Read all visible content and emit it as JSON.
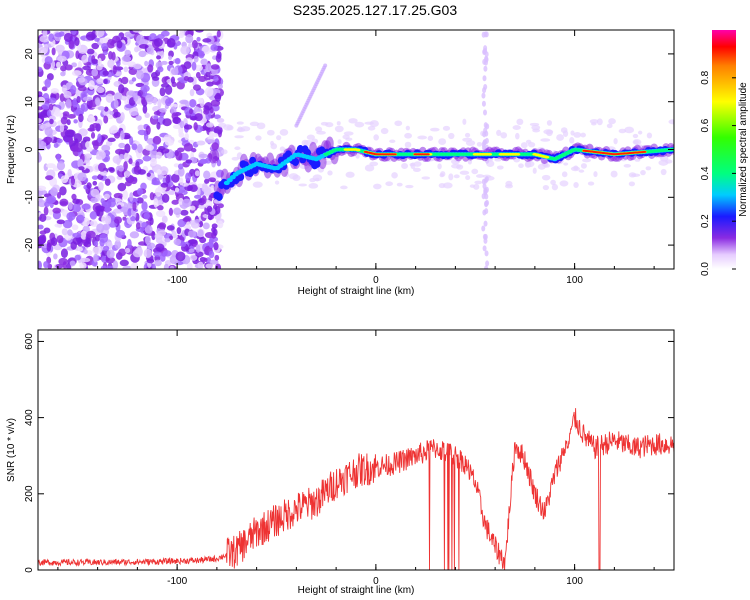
{
  "title": "S235.2025.127.17.25.G03",
  "chart_data": [
    {
      "type": "heatmap",
      "xlabel": "Height of straight line (km)",
      "ylabel": "Frequency (Hz)",
      "xlim": [
        -170,
        150
      ],
      "ylim": [
        -25,
        25
      ],
      "xticks": [
        -100,
        0,
        100
      ],
      "yticks": [
        -20,
        -10,
        0,
        10,
        20
      ],
      "colorbar": {
        "label": "Normalized spectral amplitude",
        "range": [
          0,
          1
        ],
        "ticks": [
          0.0,
          0.2,
          0.4,
          0.6,
          0.8
        ]
      },
      "ridge": [
        {
          "x": -80,
          "y": -9
        },
        {
          "x": -70,
          "y": -5
        },
        {
          "x": -60,
          "y": -3
        },
        {
          "x": -50,
          "y": -4
        },
        {
          "x": -40,
          "y": -1
        },
        {
          "x": -30,
          "y": -2
        },
        {
          "x": -20,
          "y": 0
        },
        {
          "x": -10,
          "y": 0
        },
        {
          "x": 0,
          "y": -1
        },
        {
          "x": 20,
          "y": -1
        },
        {
          "x": 40,
          "y": -1
        },
        {
          "x": 60,
          "y": -1
        },
        {
          "x": 80,
          "y": -1
        },
        {
          "x": 90,
          "y": -2
        },
        {
          "x": 100,
          "y": 0
        },
        {
          "x": 120,
          "y": -1
        },
        {
          "x": 150,
          "y": 0
        }
      ]
    },
    {
      "type": "line",
      "xlabel": "Height of straight line (km)",
      "ylabel": "SNR (10 * v/v)",
      "xlim": [
        -170,
        150
      ],
      "ylim": [
        0,
        630
      ],
      "xticks": [
        -100,
        0,
        100
      ],
      "yticks": [
        0,
        200,
        400,
        600
      ],
      "color": "#ee3333",
      "x": [
        -170,
        -140,
        -110,
        -90,
        -80,
        -70,
        -60,
        -50,
        -40,
        -30,
        -20,
        -10,
        0,
        10,
        20,
        30,
        35,
        40,
        45,
        50,
        55,
        60,
        65,
        70,
        75,
        80,
        85,
        90,
        95,
        100,
        105,
        110,
        120,
        130,
        140,
        150
      ],
      "y": [
        20,
        20,
        22,
        25,
        30,
        50,
        100,
        130,
        160,
        180,
        230,
        260,
        270,
        280,
        300,
        320,
        310,
        300,
        280,
        230,
        120,
        60,
        20,
        330,
        290,
        200,
        150,
        250,
        320,
        400,
        350,
        320,
        340,
        320,
        330,
        330
      ]
    }
  ]
}
